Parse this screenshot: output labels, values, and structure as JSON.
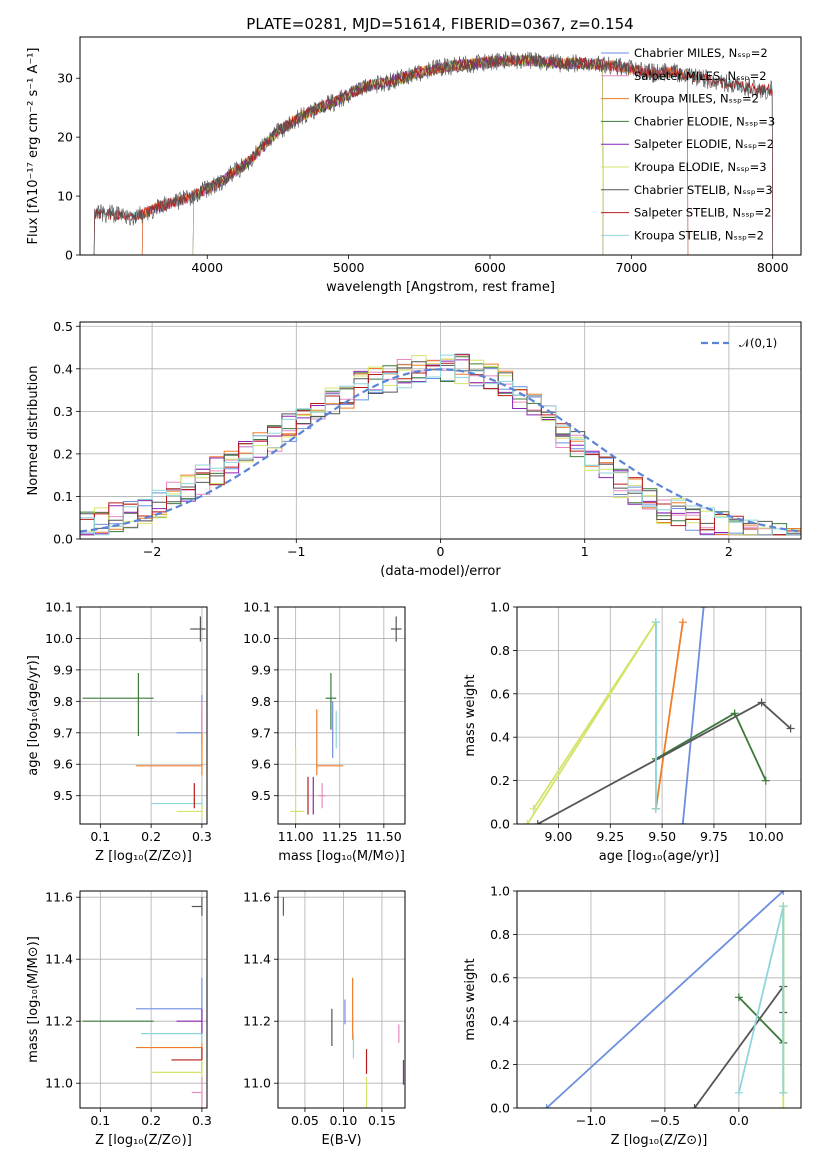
{
  "figure_title": "PLATE=0281, MJD=51614, FIBERID=0367, z=0.154",
  "model_colors": [
    "#6c8fdf",
    "#e78ac3",
    "#f07d27",
    "#3c7a3c",
    "#8e24b4",
    "#d6e36a",
    "#555555",
    "#b71c1c",
    "#8fd6dc"
  ],
  "legend_labels": [
    "Chabrier MILES, N$_{SSP}$=2",
    "Salpeter MILES, N$_{SSP}$=2",
    "Kroupa MILES, N$_{SSP}$=2",
    "Chabrier ELODIE, N$_{SSP}$=3",
    "Salpeter ELODIE, N$_{SSP}$=2",
    "Kroupa ELODIE, N$_{SSP}$=3",
    "Chabrier STELIB, N$_{SSP}$=3",
    "Salpeter STELIB, N$_{SSP}$=2",
    "Kroupa STELIB, N$_{SSP}$=2"
  ],
  "chart_data": [
    {
      "id": "spectrum",
      "type": "line",
      "title": "PLATE=0281, MJD=51614, FIBERID=0367, z=0.154",
      "xlabel": "wavelength [Angstrom, rest frame]",
      "ylabel": "Flux [f$_\\lambda$10$^{-17}$ erg cm$^{-2}$ s$^{-1}$ A$^{-1}$]",
      "xlim": [
        3100,
        8200
      ],
      "ylim": [
        0,
        37
      ],
      "xticks": [
        4000,
        5000,
        6000,
        7000,
        8000
      ],
      "yticks": [
        0,
        10,
        20,
        30
      ],
      "grid": false,
      "legend_position": "top-right",
      "continuum_x": [
        3300,
        3500,
        3700,
        3900,
        4100,
        4300,
        4500,
        4700,
        4900,
        5100,
        5300,
        5500,
        5700,
        5900,
        6100,
        6300,
        6500,
        6700,
        6900,
        7100,
        7300,
        7500,
        7700,
        7900
      ],
      "continuum_y": [
        7,
        6.5,
        8.5,
        10,
        12.5,
        16,
        21,
        24,
        26,
        28.5,
        29.5,
        31,
        32,
        32.5,
        33,
        33,
        32.5,
        32.5,
        32,
        31,
        31,
        30,
        29,
        28
      ],
      "model_extents": [
        {
          "name": "Chabrier MILES, N$_{SSP}$=2",
          "x": [
            3540,
            7400
          ]
        },
        {
          "name": "Salpeter MILES, N$_{SSP}$=2",
          "x": [
            3540,
            7400
          ]
        },
        {
          "name": "Kroupa MILES, N$_{SSP}$=2",
          "x": [
            3540,
            7400
          ]
        },
        {
          "name": "Chabrier ELODIE, N$_{SSP}$=3",
          "x": [
            3900,
            6800
          ]
        },
        {
          "name": "Salpeter ELODIE, N$_{SSP}$=2",
          "x": [
            3900,
            6800
          ]
        },
        {
          "name": "Kroupa ELODIE, N$_{SSP}$=3",
          "x": [
            3900,
            6800
          ]
        },
        {
          "name": "Chabrier STELIB, N$_{SSP}$=3",
          "x": [
            3200,
            8000
          ]
        },
        {
          "name": "Salpeter STELIB, N$_{SSP}$=2",
          "x": [
            3200,
            8000
          ]
        },
        {
          "name": "Kroupa STELIB, N$_{SSP}$=2",
          "x": [
            3200,
            8000
          ]
        }
      ]
    },
    {
      "id": "residuals",
      "type": "line",
      "xlabel": "(data-model)/error",
      "ylabel": "Normed distribution",
      "xlim": [
        -2.5,
        2.5
      ],
      "ylim": [
        0,
        0.51
      ],
      "xticks": [
        -2,
        -1,
        0,
        1,
        2
      ],
      "yticks": [
        0.0,
        0.1,
        0.2,
        0.3,
        0.4,
        0.5
      ],
      "grid": true,
      "legend_position": "top-right",
      "gaussian_label": "$\\mathcal{N}(0,1)$",
      "histogram_bin_width": 0.1,
      "histogram_profile": [
        0.05,
        0.06,
        0.07,
        0.08,
        0.09,
        0.1,
        0.12,
        0.14,
        0.16,
        0.18,
        0.2,
        0.22,
        0.24,
        0.26,
        0.28,
        0.3,
        0.32,
        0.34,
        0.36,
        0.38,
        0.39,
        0.4,
        0.41,
        0.42,
        0.42,
        0.42,
        0.42,
        0.41,
        0.4,
        0.38,
        0.36,
        0.33,
        0.3,
        0.27,
        0.24,
        0.21,
        0.18,
        0.15,
        0.13,
        0.11,
        0.09,
        0.08,
        0.07,
        0.06,
        0.05,
        0.04,
        0.035,
        0.03,
        0.025,
        0.02
      ]
    },
    {
      "id": "age-vs-Z",
      "type": "scatter",
      "xlabel": "Z [log$_{10}$(Z/Z$_\\odot$)]",
      "ylabel": "age  [log$_{10}$(age/yr)]",
      "xlim": [
        0.06,
        0.31
      ],
      "ylim": [
        9.41,
        10.1
      ],
      "xticks": [
        0.1,
        0.2,
        0.3
      ],
      "yticks": [
        9.5,
        9.6,
        9.7,
        9.8,
        9.9,
        10.0,
        10.1
      ],
      "grid": true,
      "points": [
        {
          "x": 0.175,
          "y": 9.81,
          "xerr": [
            0.11,
            0.03
          ],
          "yerr": [
            0.12,
            0.08
          ]
        },
        {
          "x": 0.297,
          "y": 10.03,
          "xerr": [
            0.02,
            0.01
          ],
          "yerr": [
            0.04,
            0.04
          ]
        },
        {
          "x": 0.3,
          "y": 9.7,
          "xerr": [
            0.05,
            0.0
          ],
          "yerr": [
            0.04,
            0.12
          ]
        },
        {
          "x": 0.3,
          "y": 9.595,
          "xerr": [
            0.13,
            0.0
          ],
          "yerr": [
            0.03,
            0.18
          ]
        },
        {
          "x": 0.3,
          "y": 9.475,
          "xerr": [
            0.1,
            0.0
          ],
          "yerr": [
            0.02,
            0.02
          ]
        },
        {
          "x": 0.285,
          "y": 9.5,
          "xerr": [
            0.0,
            0.0
          ],
          "yerr": [
            0.04,
            0.04
          ]
        },
        {
          "x": 0.3,
          "y": 9.45,
          "xerr": [
            0.05,
            0.0
          ],
          "yerr": [
            0.02,
            0.02
          ]
        },
        {
          "x": 0.3,
          "y": 9.75,
          "xerr": [
            0.0,
            0.0
          ],
          "yerr": [
            0.05,
            0.05
          ]
        }
      ]
    },
    {
      "id": "age-vs-mass",
      "type": "scatter",
      "xlabel": "mass [log$_{10}$(M/M$_\\odot$)]",
      "xlim": [
        10.9,
        11.62
      ],
      "ylim": [
        9.41,
        10.1
      ],
      "xticks": [
        11.0,
        11.25,
        11.5
      ],
      "yticks": [
        9.5,
        9.6,
        9.7,
        9.8,
        9.9,
        10.0,
        10.1
      ],
      "grid": true,
      "points": [
        {
          "x": 11.2,
          "y": 9.81,
          "xerr": [
            0.03,
            0.03
          ],
          "yerr": [
            0.1,
            0.08
          ]
        },
        {
          "x": 11.57,
          "y": 10.03,
          "xerr": [
            0.03,
            0.03
          ],
          "yerr": [
            0.04,
            0.04
          ]
        },
        {
          "x": 11.21,
          "y": 9.7,
          "xerr": [
            0.0,
            0.0
          ],
          "yerr": [
            0.08,
            0.1
          ]
        },
        {
          "x": 11.12,
          "y": 9.595,
          "xerr": [
            0.0,
            0.15
          ],
          "yerr": [
            0.03,
            0.18
          ]
        },
        {
          "x": 11.23,
          "y": 9.7,
          "xerr": [
            0.0,
            0.0
          ],
          "yerr": [
            0.05,
            0.07
          ]
        },
        {
          "x": 11.07,
          "y": 9.5,
          "xerr": [
            0.0,
            0.0
          ],
          "yerr": [
            0.06,
            0.06
          ]
        },
        {
          "x": 11.0,
          "y": 9.45,
          "xerr": [
            0.03,
            0.05
          ],
          "yerr": [
            0.05,
            0.2
          ]
        },
        {
          "x": 11.15,
          "y": 9.5,
          "xerr": [
            0.02,
            0.02
          ],
          "yerr": [
            0.04,
            0.04
          ]
        },
        {
          "x": 11.1,
          "y": 9.5,
          "xerr": [
            0.0,
            0.0
          ],
          "yerr": [
            0.06,
            0.06
          ]
        }
      ]
    },
    {
      "id": "mass-weight-vs-age",
      "type": "line",
      "xlabel": "age  [log$_{10}$(age/yr)]",
      "ylabel": "mass weight",
      "xlim": [
        8.8,
        10.17
      ],
      "ylim": [
        0,
        1
      ],
      "xticks": [
        9.0,
        9.25,
        9.5,
        9.75,
        10.0
      ],
      "yticks": [
        0.0,
        0.2,
        0.4,
        0.6,
        0.8,
        1.0
      ],
      "grid": true,
      "series": [
        {
          "x": [
            9.6,
            9.7
          ],
          "y": [
            0.0,
            1.0
          ]
        },
        {
          "x": [
            9.47,
            9.47
          ],
          "y": [
            0.07,
            0.93
          ]
        },
        {
          "x": [
            9.47,
            9.6
          ],
          "y": [
            0.07,
            0.93
          ]
        },
        {
          "x": [
            9.47,
            9.85,
            10.0
          ],
          "y": [
            0.3,
            0.51,
            0.2
          ]
        },
        {
          "x": [
            8.88,
            9.47
          ],
          "y": [
            0.07,
            0.93
          ]
        },
        {
          "x": [
            8.85,
            9.47
          ],
          "y": [
            0.0,
            0.93
          ]
        },
        {
          "x": [
            8.9,
            9.98,
            10.12
          ],
          "y": [
            0.0,
            0.56,
            0.44
          ]
        },
        {
          "x": [
            9.47,
            9.47
          ],
          "y": [
            0.07,
            0.93
          ]
        }
      ]
    },
    {
      "id": "mass-vs-Z",
      "type": "scatter",
      "xlabel": "Z [log$_{10}$(Z/Z$_\\odot$)]",
      "ylabel": "mass [log$_{10}$(M/M$_\\odot$)]",
      "xlim": [
        0.06,
        0.31
      ],
      "ylim": [
        10.92,
        11.62
      ],
      "xticks": [
        0.1,
        0.2,
        0.3
      ],
      "yticks": [
        11.0,
        11.2,
        11.4,
        11.6
      ],
      "grid": true,
      "points": [
        {
          "x": 0.175,
          "y": 11.2,
          "xerr": [
            0.11,
            0.03
          ],
          "yerr": [
            0.0,
            0.0
          ]
        },
        {
          "x": 0.3,
          "y": 11.57,
          "xerr": [
            0.02,
            0.0
          ],
          "yerr": [
            0.03,
            0.03
          ]
        },
        {
          "x": 0.3,
          "y": 11.24,
          "xerr": [
            0.13,
            0.0
          ],
          "yerr": [
            0.04,
            0.1
          ]
        },
        {
          "x": 0.3,
          "y": 11.115,
          "xerr": [
            0.13,
            0.0
          ],
          "yerr": [
            0.04,
            0.04
          ]
        },
        {
          "x": 0.3,
          "y": 11.16,
          "xerr": [
            0.12,
            0.0
          ],
          "yerr": [
            0.03,
            0.03
          ]
        },
        {
          "x": 0.3,
          "y": 11.075,
          "xerr": [
            0.06,
            0.0
          ],
          "yerr": [
            0.04,
            0.04
          ]
        },
        {
          "x": 0.3,
          "y": 11.035,
          "xerr": [
            0.1,
            0.0
          ],
          "yerr": [
            0.04,
            0.04
          ]
        },
        {
          "x": 0.3,
          "y": 10.97,
          "xerr": [
            0.02,
            0.0
          ],
          "yerr": [
            0.05,
            0.05
          ]
        },
        {
          "x": 0.3,
          "y": 11.2,
          "xerr": [
            0.05,
            0.0
          ],
          "yerr": [
            0.04,
            0.04
          ]
        }
      ]
    },
    {
      "id": "mass-vs-ebv",
      "type": "scatter",
      "xlabel": "E(B-V)",
      "xlim": [
        0.015,
        0.18
      ],
      "ylim": [
        10.92,
        11.62
      ],
      "xticks": [
        0.05,
        0.1,
        0.15
      ],
      "yticks": [
        11.0,
        11.2,
        11.4,
        11.6
      ],
      "grid": true,
      "points": [
        {
          "x": 0.022,
          "y": 11.57,
          "xerr": [
            0.0,
            0.0
          ],
          "yerr": [
            0.03,
            0.03
          ]
        },
        {
          "x": 0.085,
          "y": 11.18,
          "xerr": [
            0.0,
            0.0
          ],
          "yerr": [
            0.06,
            0.06
          ]
        },
        {
          "x": 0.102,
          "y": 11.23,
          "xerr": [
            0.0,
            0.0
          ],
          "yerr": [
            0.04,
            0.04
          ]
        },
        {
          "x": 0.112,
          "y": 11.24,
          "xerr": [
            0.0,
            0.0
          ],
          "yerr": [
            0.1,
            0.1
          ]
        },
        {
          "x": 0.113,
          "y": 11.12,
          "xerr": [
            0.0,
            0.0
          ],
          "yerr": [
            0.04,
            0.04
          ]
        },
        {
          "x": 0.13,
          "y": 11.07,
          "xerr": [
            0.0,
            0.0
          ],
          "yerr": [
            0.04,
            0.04
          ]
        },
        {
          "x": 0.13,
          "y": 10.97,
          "xerr": [
            0.0,
            0.0
          ],
          "yerr": [
            0.05,
            0.05
          ]
        },
        {
          "x": 0.172,
          "y": 11.16,
          "xerr": [
            0.0,
            0.0
          ],
          "yerr": [
            0.03,
            0.03
          ]
        },
        {
          "x": 0.178,
          "y": 11.035,
          "xerr": [
            0.0,
            0.0
          ],
          "yerr": [
            0.04,
            0.04
          ]
        }
      ]
    },
    {
      "id": "mass-weight-vs-Z",
      "type": "line",
      "xlabel": "Z [log$_{10}$(Z/Z$_\\odot$)]",
      "ylabel": "mass weight",
      "xlim": [
        -1.5,
        0.42
      ],
      "ylim": [
        0,
        1
      ],
      "xticks": [
        -1.0,
        -0.5,
        0.0
      ],
      "yticks": [
        0.0,
        0.2,
        0.4,
        0.6,
        0.8,
        1.0
      ],
      "grid": true,
      "series": [
        {
          "x": [
            -1.3,
            0.3
          ],
          "y": [
            0.0,
            1.0
          ]
        },
        {
          "x": [
            -0.3,
            0.3,
            0.3
          ],
          "y": [
            0.0,
            0.56,
            0.44
          ]
        },
        {
          "x": [
            0.0,
            0.3,
            0.3
          ],
          "y": [
            0.51,
            0.3,
            0.93
          ]
        },
        {
          "x": [
            0.0,
            0.3,
            0.3
          ],
          "y": [
            0.07,
            0.93,
            0.07
          ]
        },
        {
          "x": [
            0.3,
            0.3
          ],
          "y": [
            0.07,
            0.93
          ]
        },
        {
          "x": [
            0.3,
            0.3
          ],
          "y": [
            0.0,
            0.93
          ]
        },
        {
          "x": [
            0.3,
            0.3
          ],
          "y": [
            0.07,
            0.93
          ]
        }
      ]
    }
  ]
}
